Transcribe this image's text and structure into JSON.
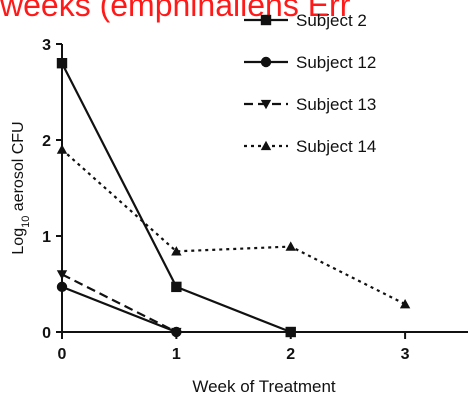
{
  "banner": {
    "text": "weeks (emphinaliens Err",
    "color": "#ff1a1a"
  },
  "chart_data": {
    "type": "line",
    "x": [
      0,
      1,
      2,
      3
    ],
    "xlim": [
      0,
      3.55
    ],
    "ylim": [
      0,
      3
    ],
    "xticks": [
      "0",
      "1",
      "2",
      "3"
    ],
    "yticks": [
      "0",
      "1",
      "2",
      "3"
    ],
    "xlabel": "Week of Treatment",
    "ylabel": "Log10 aerosol CFU",
    "ylabel_main": "Log",
    "ylabel_sub": "10",
    "ylabel_rest": " aerosol CFU",
    "grid": false,
    "legend_position": "top-right",
    "series": [
      {
        "name": "Subject 2",
        "marker": "square",
        "dash": "solid",
        "color": "#111111",
        "values": [
          2.8,
          0.47,
          0.0,
          null
        ]
      },
      {
        "name": "Subject 12",
        "marker": "circle",
        "dash": "solid",
        "color": "#111111",
        "values": [
          0.47,
          0.0,
          null,
          null
        ]
      },
      {
        "name": "Subject 13",
        "marker": "triangle-down",
        "dash": "dashed",
        "color": "#111111",
        "values": [
          0.6,
          0.0,
          null,
          null
        ]
      },
      {
        "name": "Subject 14",
        "marker": "triangle-up",
        "dash": "dotted",
        "color": "#111111",
        "values": [
          1.9,
          0.84,
          0.89,
          0.29
        ]
      }
    ]
  }
}
